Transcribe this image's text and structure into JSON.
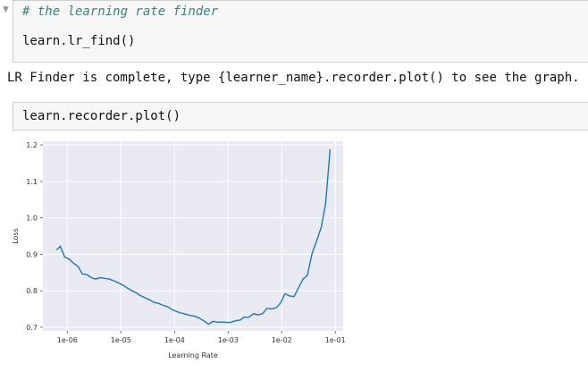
{
  "cells": [
    {
      "comment": "# the learning rate finder",
      "code": "learn.lr_find()",
      "collapser": "▼"
    },
    {
      "code": "learn.recorder.plot()"
    }
  ],
  "output": {
    "text": "LR Finder is complete, type {learner_name}.recorder.plot() to see the graph."
  },
  "chart_data": {
    "type": "line",
    "xlabel": "Learning Rate",
    "ylabel": "Loss",
    "xscale": "log",
    "xlim": [
      3.5e-07,
      0.14
    ],
    "ylim": [
      0.69,
      1.21
    ],
    "xticks": [
      1e-06,
      1e-05,
      0.0001,
      0.001,
      0.01,
      0.1
    ],
    "xtick_labels": [
      "1e-06",
      "1e-05",
      "1e-04",
      "1e-03",
      "1e-02",
      "1e-01"
    ],
    "yticks": [
      0.7,
      0.8,
      0.9,
      1.0,
      1.1,
      1.2
    ],
    "ytick_labels": [
      "0.7",
      "0.8",
      "0.9",
      "1.0",
      "1.1",
      "1.2"
    ],
    "grid": true,
    "line_color": "#1f77b4",
    "background_color": "#eaeaf2",
    "series": [
      {
        "x": [
          6.3e-07,
          7.4e-07,
          8.9e-07,
          1.1e-06,
          1.3e-06,
          1.6e-06,
          1.9e-06,
          2.3e-06,
          2.8e-06,
          3.4e-06,
          4.1e-06,
          5e-06,
          6.1e-06,
          7.4e-06,
          9e-06,
          1.1e-05,
          1.3e-05,
          1.6e-05,
          1.9e-05,
          2.3e-05,
          2.8e-05,
          3.4e-05,
          4.2e-05,
          5.1e-05,
          6.2e-05,
          7.5e-05,
          9.1e-05,
          0.00011,
          0.00013,
          0.00016,
          0.0002,
          0.00024,
          0.00029,
          0.00035,
          0.00043,
          0.00052,
          0.00063,
          0.00076,
          0.00093,
          0.0011,
          0.0014,
          0.0017,
          0.002,
          0.0024,
          0.003,
          0.0036,
          0.0044,
          0.0053,
          0.0064,
          0.0078,
          0.0095,
          0.0115,
          0.014,
          0.017,
          0.021,
          0.025,
          0.03,
          0.037,
          0.045,
          0.055,
          0.066,
          0.08
        ],
        "y": [
          0.912,
          0.922,
          0.893,
          0.886,
          0.876,
          0.866,
          0.846,
          0.845,
          0.836,
          0.832,
          0.836,
          0.834,
          0.832,
          0.827,
          0.822,
          0.815,
          0.808,
          0.8,
          0.795,
          0.787,
          0.781,
          0.775,
          0.768,
          0.765,
          0.76,
          0.756,
          0.748,
          0.743,
          0.739,
          0.736,
          0.732,
          0.73,
          0.725,
          0.718,
          0.708,
          0.716,
          0.714,
          0.714,
          0.713,
          0.713,
          0.718,
          0.72,
          0.728,
          0.727,
          0.737,
          0.734,
          0.737,
          0.752,
          0.75,
          0.753,
          0.766,
          0.792,
          0.786,
          0.784,
          0.811,
          0.832,
          0.842,
          0.903,
          0.937,
          0.976,
          1.04,
          1.188
        ]
      }
    ]
  }
}
